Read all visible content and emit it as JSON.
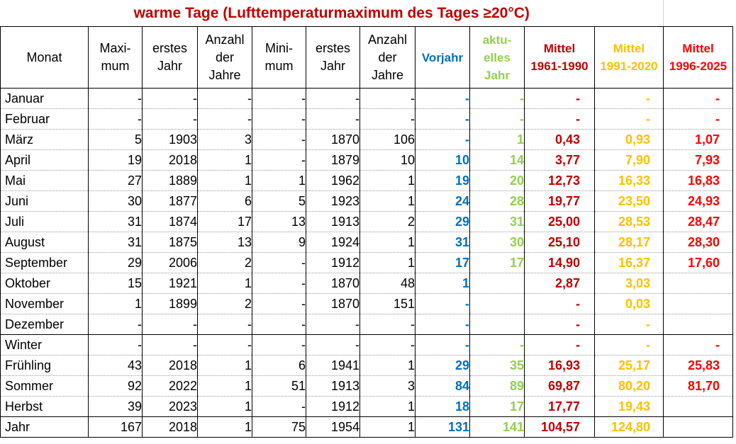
{
  "title": "warme Tage (Lufttemperaturmaximum des Tages ≥20°C)",
  "headers": [
    {
      "key": "monat",
      "lines": [
        "Monat"
      ]
    },
    {
      "key": "maximum",
      "lines": [
        "Maxi-",
        "mum"
      ]
    },
    {
      "key": "erstes_jahr_max",
      "lines": [
        "erstes",
        "Jahr"
      ]
    },
    {
      "key": "anzahl_max",
      "lines": [
        "Anzahl",
        "der",
        "Jahre"
      ]
    },
    {
      "key": "minimum",
      "lines": [
        "Mini-",
        "mum"
      ]
    },
    {
      "key": "erstes_jahr_min",
      "lines": [
        "erstes",
        "Jahr"
      ]
    },
    {
      "key": "anzahl_min",
      "lines": [
        "Anzahl",
        "der",
        "Jahre"
      ]
    },
    {
      "key": "vorjahr",
      "lines": [
        "Vorjahr"
      ]
    },
    {
      "key": "aktuelles_jahr",
      "lines": [
        "aktu-",
        "elles",
        "Jahr"
      ]
    },
    {
      "key": "mittel_1961",
      "lines": [
        "Mittel",
        "1961-1990"
      ]
    },
    {
      "key": "mittel_1991",
      "lines": [
        "Mittel",
        "1991-2020"
      ]
    },
    {
      "key": "mittel_1996",
      "lines": [
        "Mittel",
        "1996-2025"
      ]
    }
  ],
  "rows": [
    {
      "monat": "Januar",
      "maximum": "-",
      "erstes_jahr_max": "-",
      "anzahl_max": "-",
      "minimum": "-",
      "erstes_jahr_min": "-",
      "anzahl_min": "-",
      "vorjahr": "-",
      "aktuelles_jahr": "-",
      "mittel_1961": "-",
      "mittel_1991": "-",
      "mittel_1996": "-"
    },
    {
      "monat": "Februar",
      "maximum": "-",
      "erstes_jahr_max": "-",
      "anzahl_max": "-",
      "minimum": "-",
      "erstes_jahr_min": "-",
      "anzahl_min": "-",
      "vorjahr": "-",
      "aktuelles_jahr": "-",
      "mittel_1961": "-",
      "mittel_1991": "-",
      "mittel_1996": "-"
    },
    {
      "monat": "März",
      "maximum": "5",
      "erstes_jahr_max": "1903",
      "anzahl_max": "3",
      "minimum": "-",
      "erstes_jahr_min": "1870",
      "anzahl_min": "106",
      "vorjahr": "-",
      "aktuelles_jahr": "1",
      "mittel_1961": "0,43",
      "mittel_1991": "0,93",
      "mittel_1996": "1,07"
    },
    {
      "monat": "April",
      "maximum": "19",
      "erstes_jahr_max": "2018",
      "anzahl_max": "1",
      "minimum": "-",
      "erstes_jahr_min": "1879",
      "anzahl_min": "10",
      "vorjahr": "10",
      "aktuelles_jahr": "14",
      "mittel_1961": "3,77",
      "mittel_1991": "7,90",
      "mittel_1996": "7,93"
    },
    {
      "monat": "Mai",
      "maximum": "27",
      "erstes_jahr_max": "1889",
      "anzahl_max": "1",
      "minimum": "1",
      "erstes_jahr_min": "1962",
      "anzahl_min": "1",
      "vorjahr": "19",
      "aktuelles_jahr": "20",
      "mittel_1961": "12,73",
      "mittel_1991": "16,33",
      "mittel_1996": "16,83"
    },
    {
      "monat": "Juni",
      "maximum": "30",
      "erstes_jahr_max": "1877",
      "anzahl_max": "6",
      "minimum": "5",
      "erstes_jahr_min": "1923",
      "anzahl_min": "1",
      "vorjahr": "24",
      "aktuelles_jahr": "28",
      "mittel_1961": "19,77",
      "mittel_1991": "23,50",
      "mittel_1996": "24,93"
    },
    {
      "monat": "Juli",
      "maximum": "31",
      "erstes_jahr_max": "1874",
      "anzahl_max": "17",
      "minimum": "13",
      "erstes_jahr_min": "1913",
      "anzahl_min": "2",
      "vorjahr": "29",
      "aktuelles_jahr": "31",
      "mittel_1961": "25,00",
      "mittel_1991": "28,53",
      "mittel_1996": "28,47"
    },
    {
      "monat": "August",
      "maximum": "31",
      "erstes_jahr_max": "1875",
      "anzahl_max": "13",
      "minimum": "9",
      "erstes_jahr_min": "1924",
      "anzahl_min": "1",
      "vorjahr": "31",
      "aktuelles_jahr": "30",
      "mittel_1961": "25,10",
      "mittel_1991": "28,17",
      "mittel_1996": "28,30"
    },
    {
      "monat": "September",
      "maximum": "29",
      "erstes_jahr_max": "2006",
      "anzahl_max": "2",
      "minimum": "-",
      "erstes_jahr_min": "1912",
      "anzahl_min": "1",
      "vorjahr": "17",
      "aktuelles_jahr": "17",
      "mittel_1961": "14,90",
      "mittel_1991": "16,37",
      "mittel_1996": "17,60"
    },
    {
      "monat": "Oktober",
      "maximum": "15",
      "erstes_jahr_max": "1921",
      "anzahl_max": "1",
      "minimum": "-",
      "erstes_jahr_min": "1870",
      "anzahl_min": "48",
      "vorjahr": "1",
      "aktuelles_jahr": "",
      "mittel_1961": "2,87",
      "mittel_1991": "3,03",
      "mittel_1996": ""
    },
    {
      "monat": "November",
      "maximum": "1",
      "erstes_jahr_max": "1899",
      "anzahl_max": "2",
      "minimum": "-",
      "erstes_jahr_min": "1870",
      "anzahl_min": "151",
      "vorjahr": "-",
      "aktuelles_jahr": "",
      "mittel_1961": "-",
      "mittel_1991": "0,03",
      "mittel_1996": ""
    },
    {
      "monat": "Dezember",
      "maximum": "-",
      "erstes_jahr_max": "-",
      "anzahl_max": "-",
      "minimum": "-",
      "erstes_jahr_min": "-",
      "anzahl_min": "-",
      "vorjahr": "-",
      "aktuelles_jahr": "",
      "mittel_1961": "-",
      "mittel_1991": "-",
      "mittel_1996": ""
    },
    {
      "monat": "Winter",
      "maximum": "-",
      "erstes_jahr_max": "-",
      "anzahl_max": "-",
      "minimum": "-",
      "erstes_jahr_min": "-",
      "anzahl_min": "-",
      "vorjahr": "-",
      "aktuelles_jahr": "-",
      "mittel_1961": "-",
      "mittel_1991": "-",
      "mittel_1996": "-"
    },
    {
      "monat": "Frühling",
      "maximum": "43",
      "erstes_jahr_max": "2018",
      "anzahl_max": "1",
      "minimum": "6",
      "erstes_jahr_min": "1941",
      "anzahl_min": "1",
      "vorjahr": "29",
      "aktuelles_jahr": "35",
      "mittel_1961": "16,93",
      "mittel_1991": "25,17",
      "mittel_1996": "25,83"
    },
    {
      "monat": "Sommer",
      "maximum": "92",
      "erstes_jahr_max": "2022",
      "anzahl_max": "1",
      "minimum": "51",
      "erstes_jahr_min": "1913",
      "anzahl_min": "3",
      "vorjahr": "84",
      "aktuelles_jahr": "89",
      "mittel_1961": "69,87",
      "mittel_1991": "80,20",
      "mittel_1996": "81,70"
    },
    {
      "monat": "Herbst",
      "maximum": "39",
      "erstes_jahr_max": "2023",
      "anzahl_max": "1",
      "minimum": "-",
      "erstes_jahr_min": "1912",
      "anzahl_min": "1",
      "vorjahr": "18",
      "aktuelles_jahr": "17",
      "mittel_1961": "17,77",
      "mittel_1991": "19,43",
      "mittel_1996": ""
    },
    {
      "monat": "Jahr",
      "maximum": "167",
      "erstes_jahr_max": "2018",
      "anzahl_max": "1",
      "minimum": "75",
      "erstes_jahr_min": "1954",
      "anzahl_min": "1",
      "vorjahr": "131",
      "aktuelles_jahr": "141",
      "mittel_1961": "104,57",
      "mittel_1991": "124,80",
      "mittel_1996": ""
    }
  ],
  "colors": {
    "title": "#c00000",
    "vorjahr": "#0070c0",
    "aktuelles_jahr": "#92d050",
    "mittel_1961": "#c00000",
    "mittel_1991": "#ffc000",
    "mittel_1996": "#ff0000"
  }
}
